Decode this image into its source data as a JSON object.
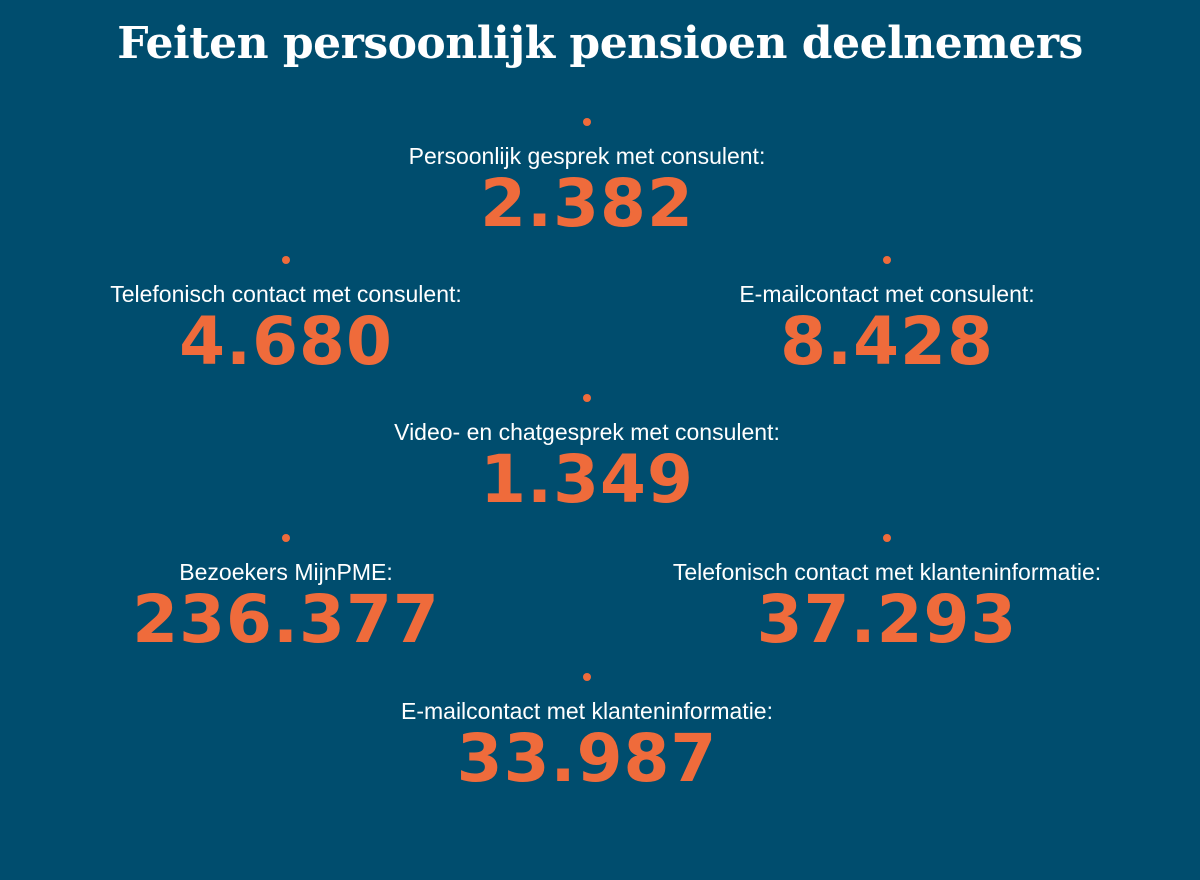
{
  "title": "Feiten persoonlijk pensioen deelnemers",
  "colors": {
    "background": "#004d6e",
    "accent": "#ef6b3b",
    "text": "#ffffff"
  },
  "facts": [
    {
      "label": "Persoonlijk gesprek met consulent:",
      "value": "2.382"
    },
    {
      "label": "Telefonisch contact met consulent:",
      "value": "4.680"
    },
    {
      "label": "E-mailcontact met consulent:",
      "value": "8.428"
    },
    {
      "label": "Video- en chatgesprek met consulent:",
      "value": "1.349"
    },
    {
      "label": "Bezoekers MijnPME:",
      "value": "236.377"
    },
    {
      "label": "Telefonisch contact met klanteninformatie:",
      "value": "37.293"
    },
    {
      "label": "E-mailcontact met klanteninformatie:",
      "value": "33.987"
    }
  ]
}
